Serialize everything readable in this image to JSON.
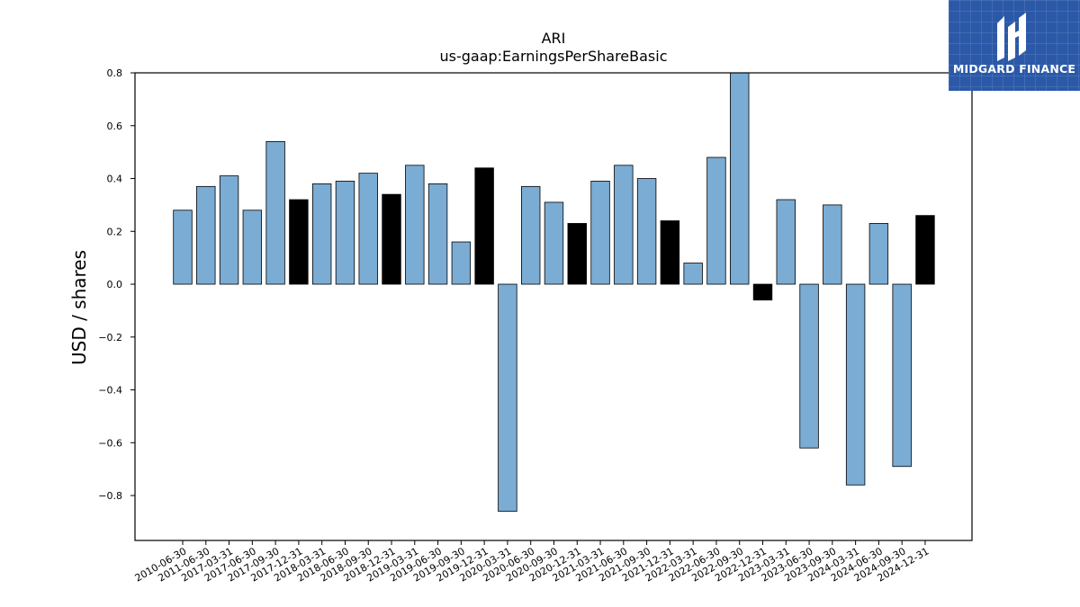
{
  "chart_data": {
    "type": "bar",
    "title": "ARI",
    "subtitle": "us-gaap:EarningsPerShareBasic",
    "xlabel": "",
    "ylabel": "USD / shares",
    "ylim": [
      -0.97,
      0.8
    ],
    "yticks": [
      0.8,
      0.6,
      0.4,
      0.2,
      0.0,
      -0.2,
      -0.4,
      -0.6,
      -0.8
    ],
    "ytick_labels": [
      "0.8",
      "0.6",
      "0.4",
      "0.2",
      "0.0",
      "−0.2",
      "−0.4",
      "−0.6",
      "−0.8"
    ],
    "grid": false,
    "categories": [
      "2010-06-30",
      "2011-06-30",
      "2017-03-31",
      "2017-06-30",
      "2017-09-30",
      "2017-12-31",
      "2018-03-31",
      "2018-06-30",
      "2018-09-30",
      "2018-12-31",
      "2019-03-31",
      "2019-06-30",
      "2019-09-30",
      "2019-12-31",
      "2020-03-31",
      "2020-06-30",
      "2020-09-30",
      "2020-12-31",
      "2021-03-31",
      "2021-06-30",
      "2021-09-30",
      "2021-12-31",
      "2022-03-31",
      "2022-06-30",
      "2022-09-30",
      "2022-12-31",
      "2023-03-31",
      "2023-06-30",
      "2023-09-30",
      "2024-03-31",
      "2024-06-30",
      "2024-09-30",
      "2024-12-31"
    ],
    "values": [
      0.28,
      0.37,
      0.41,
      0.28,
      0.54,
      0.32,
      0.38,
      0.39,
      0.42,
      0.34,
      0.45,
      0.38,
      0.16,
      0.44,
      -0.86,
      0.37,
      0.31,
      0.23,
      0.39,
      0.45,
      0.4,
      0.24,
      0.08,
      0.48,
      0.8,
      -0.06,
      0.32,
      -0.62,
      0.3,
      -0.76,
      0.23,
      -0.69,
      0.26
    ],
    "quarter_color": "#7bacd3",
    "annual_color": "#000000",
    "annual_indices": [
      5,
      9,
      13,
      17,
      21,
      25,
      32
    ]
  },
  "logo": {
    "text": "MIDGARD FINANCE"
  }
}
